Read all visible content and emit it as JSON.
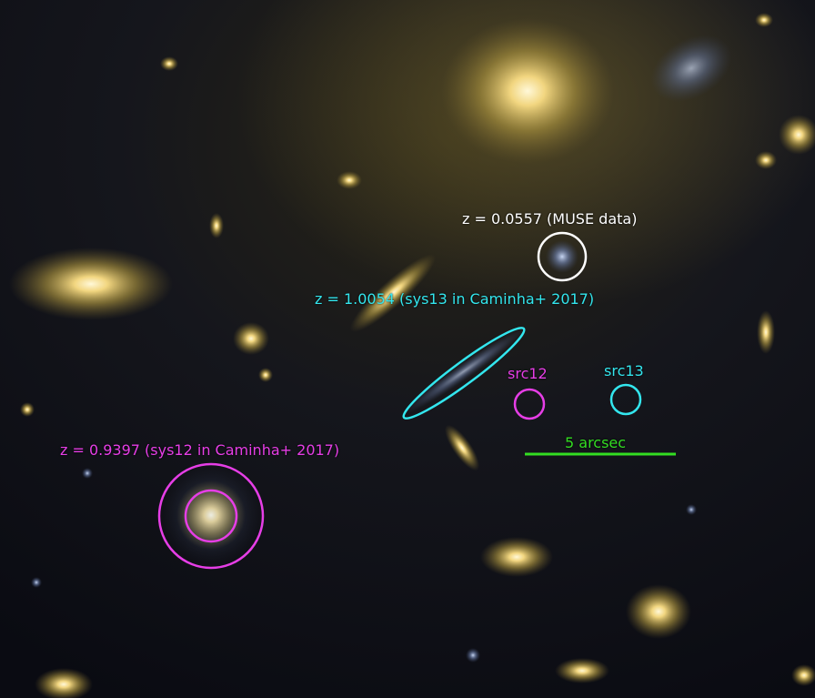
{
  "annotations": {
    "muse_label": "z = 0.0557 (MUSE data)",
    "sys13_label": "z = 1.0054 (sys13 in Caminha+ 2017)",
    "sys12_label": "z = 0.9397 (sys12 in Caminha+ 2017)",
    "src12_label": "src12",
    "src13_label": "src13",
    "scale_label": "5 arcsec"
  },
  "colors": {
    "white": "#ffffff",
    "cyan": "#33e6ee",
    "magenta": "#e63ee6",
    "green": "#33dd22"
  }
}
